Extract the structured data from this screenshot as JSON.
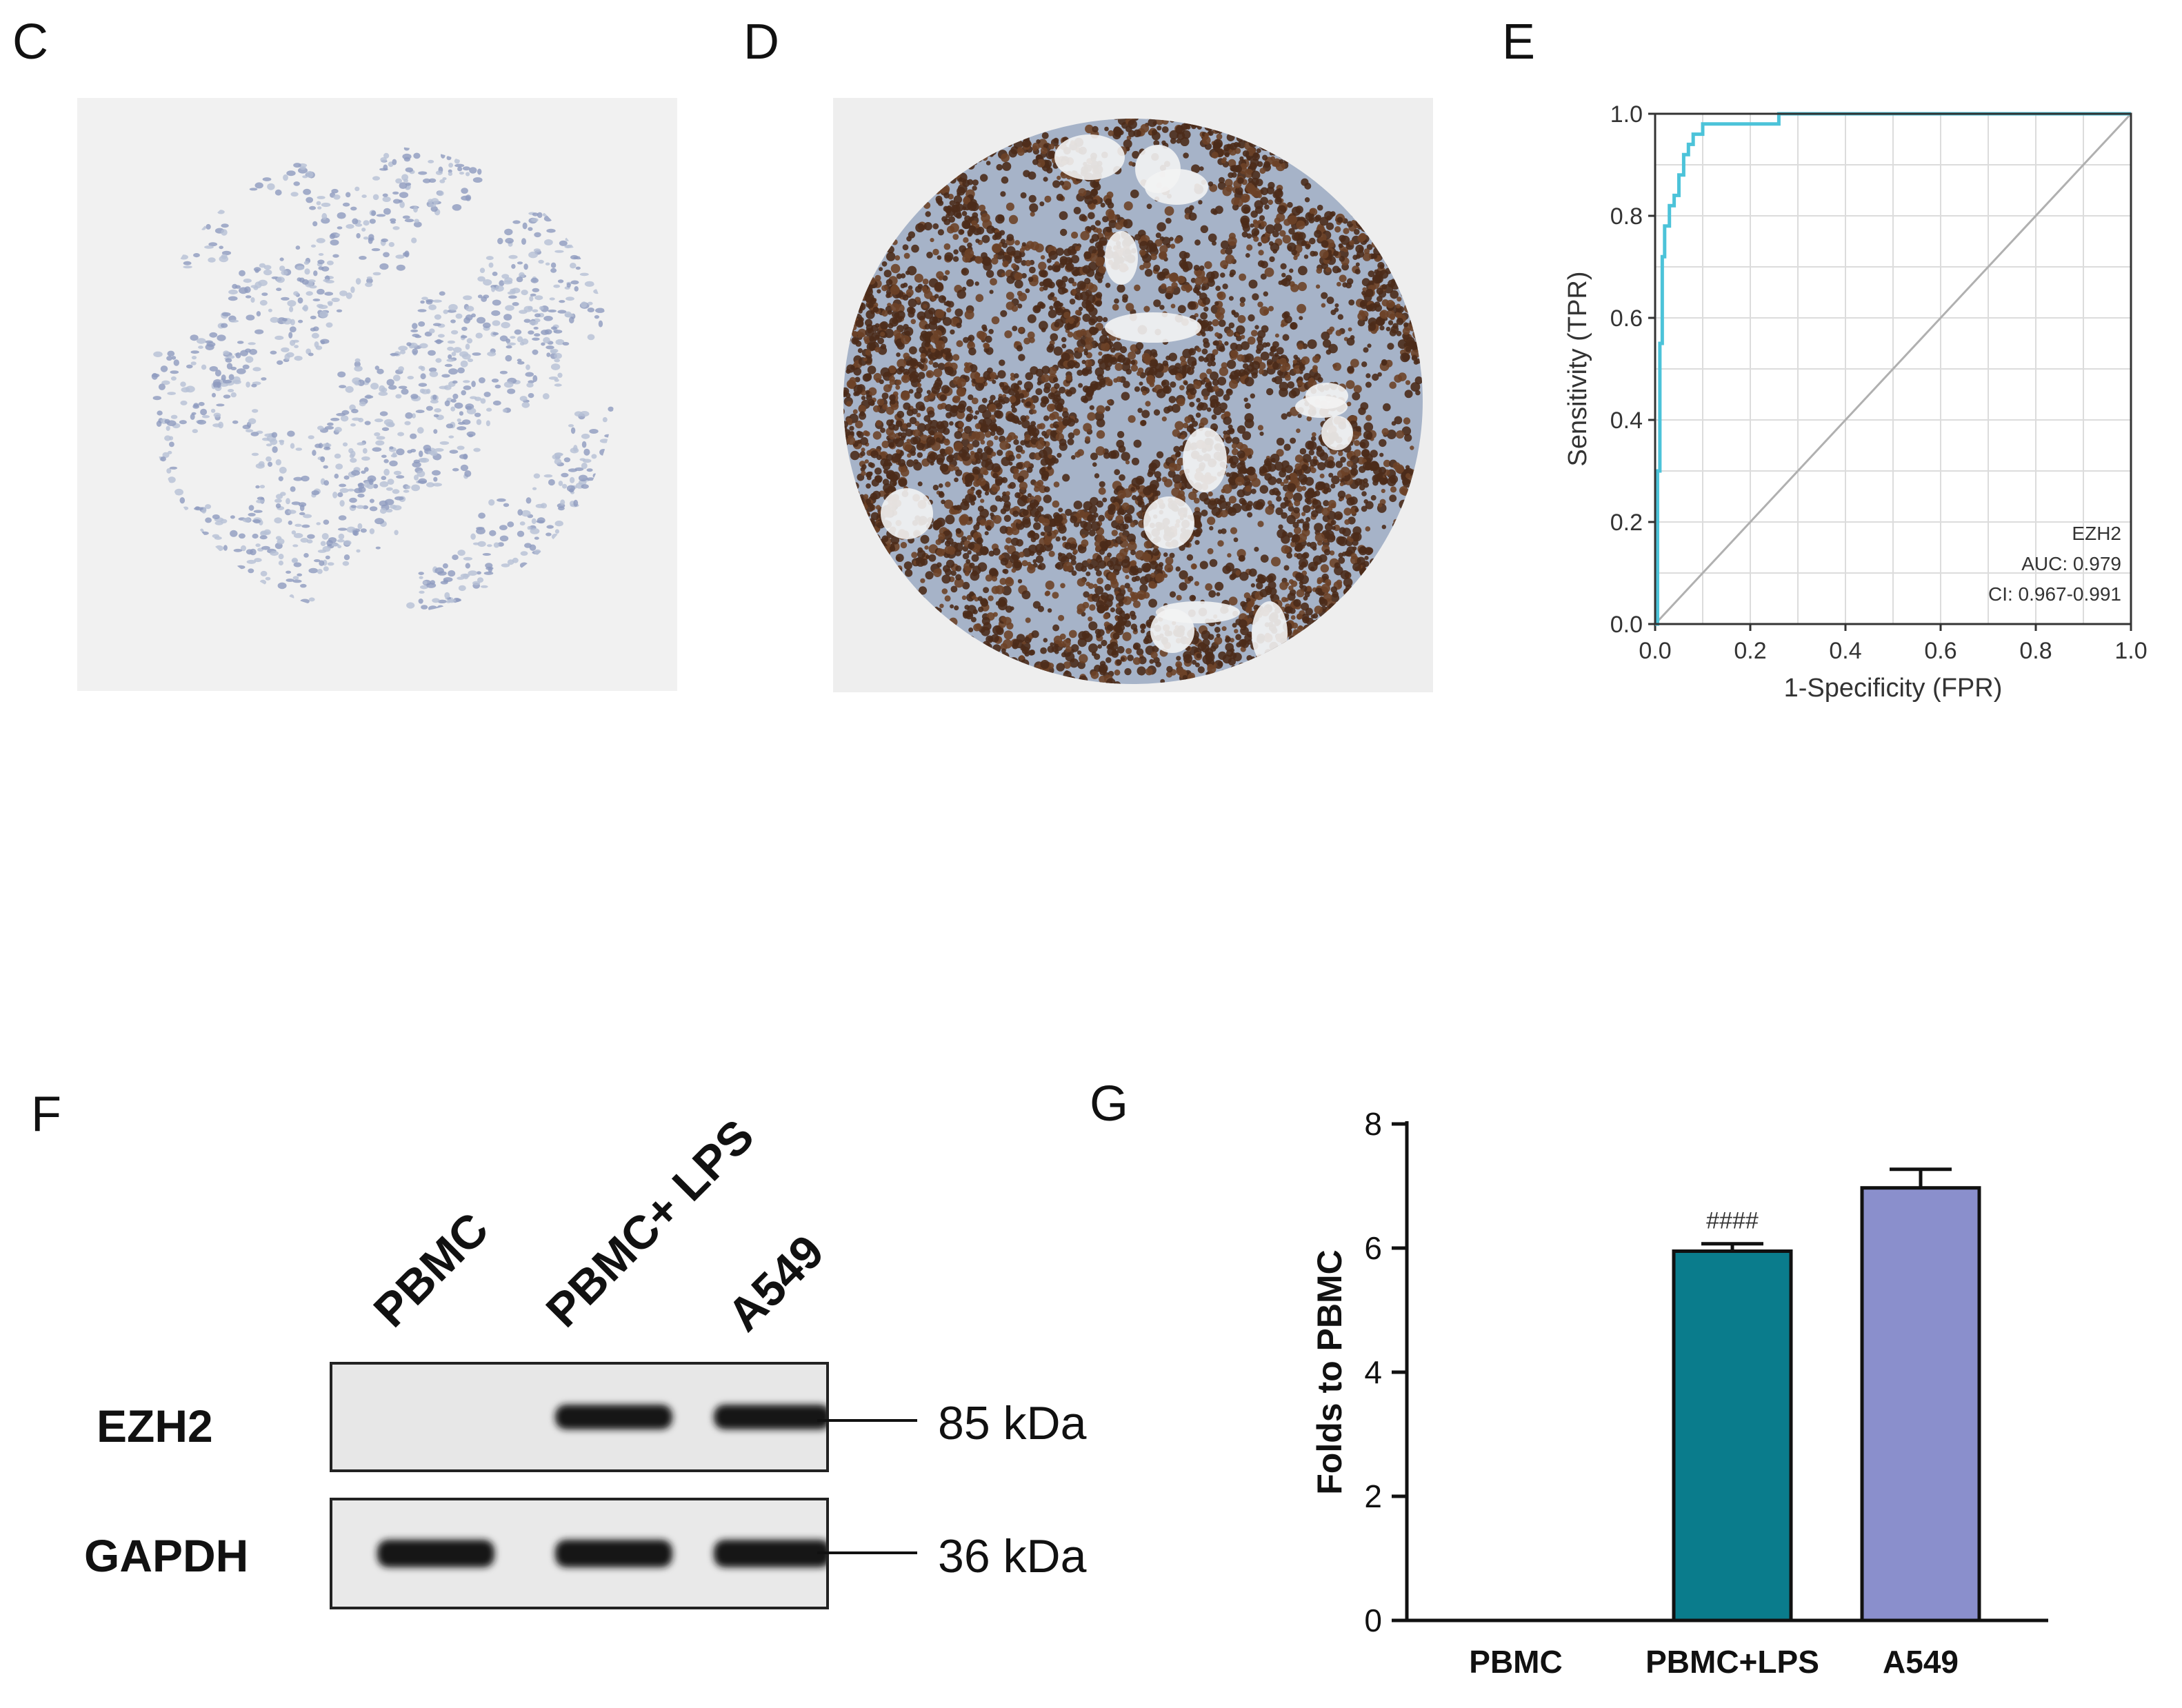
{
  "panels": {
    "C": {
      "letter": "C"
    },
    "D": {
      "letter": "D"
    },
    "E": {
      "letter": "E"
    },
    "F": {
      "letter": "F"
    },
    "G": {
      "letter": "G"
    }
  },
  "chart_data": [
    {
      "type": "line",
      "panel": "E",
      "xlabel": "1-Specificity (FPR)",
      "ylabel": "Sensitivity (TPR)",
      "xlim": [
        0,
        1
      ],
      "ylim": [
        0,
        1
      ],
      "xticks": [
        "0.0",
        "0.2",
        "0.4",
        "0.6",
        "0.8",
        "1.0"
      ],
      "yticks": [
        "0.0",
        "0.2",
        "0.4",
        "0.6",
        "0.8",
        "1.0"
      ],
      "grid": true,
      "series": [
        {
          "color": "#4cc3d9",
          "x": [
            0,
            0.005,
            0.005,
            0.01,
            0.01,
            0.015,
            0.015,
            0.02,
            0.02,
            0.03,
            0.03,
            0.04,
            0.04,
            0.05,
            0.05,
            0.06,
            0.06,
            0.07,
            0.07,
            0.08,
            0.08,
            0.1,
            0.1,
            0.15,
            0.26,
            0.26,
            1.0
          ],
          "y": [
            0,
            0,
            0.3,
            0.3,
            0.55,
            0.55,
            0.72,
            0.72,
            0.78,
            0.78,
            0.82,
            0.82,
            0.84,
            0.84,
            0.88,
            0.88,
            0.92,
            0.92,
            0.94,
            0.94,
            0.96,
            0.96,
            0.98,
            0.98,
            0.98,
            1.0,
            1.0
          ]
        },
        {
          "color": "#b0b0b0",
          "x": [
            0,
            1
          ],
          "y": [
            0,
            1
          ]
        }
      ],
      "legend_position": "bottom-right",
      "annotation": [
        "EZH2",
        "AUC: 0.979",
        "CI: 0.967-0.991"
      ]
    },
    {
      "type": "bar",
      "panel": "G",
      "ylabel": "Folds to PBMC",
      "categories": [
        "PBMC",
        "PBMC+LPS",
        "A549"
      ],
      "values": [
        0,
        5.95,
        6.97
      ],
      "errors": [
        0,
        0.12,
        0.3
      ],
      "colors": [
        "#ffffff",
        "#0a7c8c",
        "#8a8fcc"
      ],
      "ylim": [
        0,
        8
      ],
      "yticks": [
        "0",
        "2",
        "4",
        "6",
        "8"
      ],
      "significance": [
        "",
        "####",
        ""
      ]
    }
  ],
  "western_blot": {
    "lanes": [
      "PBMC",
      "PBMC+ LPS",
      "A549"
    ],
    "rows": [
      {
        "protein": "EZH2",
        "size": "85 kDa",
        "band_intensity": [
          0,
          1,
          1
        ]
      },
      {
        "protein": "GAPDH",
        "size": "36 kDa",
        "band_intensity": [
          1,
          1,
          1
        ]
      }
    ]
  }
}
